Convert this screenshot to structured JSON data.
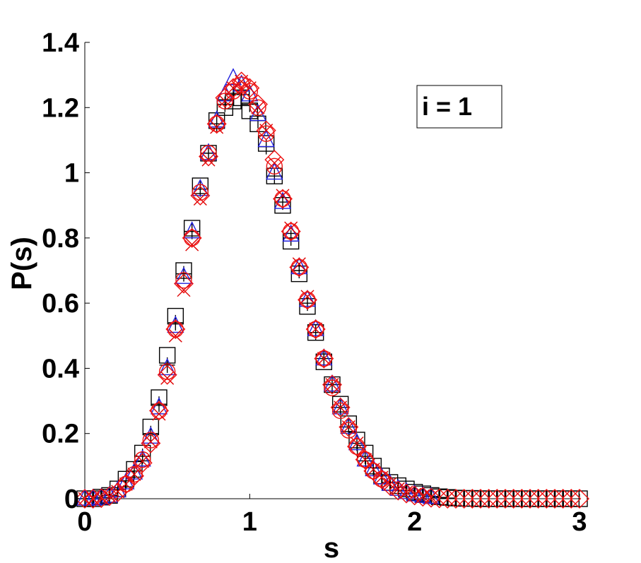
{
  "chart_data": {
    "type": "scatter",
    "title": "",
    "xlabel": "s",
    "ylabel": "P(s)",
    "xlim": [
      0,
      3
    ],
    "ylim": [
      0,
      1.4
    ],
    "xticks": [
      0,
      1,
      2,
      3
    ],
    "xtick_labels": [
      "0",
      "1",
      "2",
      "3"
    ],
    "yticks": [
      0,
      0.2,
      0.4,
      0.6,
      0.8,
      1.0,
      1.2,
      1.4
    ],
    "ytick_labels": [
      "0",
      "0.2",
      "0.4",
      "0.6",
      "0.8",
      "1",
      "1.2",
      "1.4"
    ],
    "grid": false,
    "annotation": "i = 1",
    "annotation_placement": "top-right",
    "series": [
      {
        "marker": "square",
        "color": "#000000",
        "x": [
          0.0,
          0.05,
          0.1,
          0.15,
          0.2,
          0.25,
          0.3,
          0.35,
          0.4,
          0.45,
          0.5,
          0.55,
          0.6,
          0.65,
          0.7,
          0.75,
          0.8,
          0.85,
          0.9,
          0.95,
          1.0,
          1.05,
          1.1,
          1.15,
          1.2,
          1.25,
          1.3,
          1.35,
          1.4,
          1.45,
          1.5,
          1.55,
          1.6,
          1.65,
          1.7,
          1.75,
          1.8,
          1.85,
          1.9,
          1.95,
          2.0,
          2.05,
          2.1,
          2.15,
          2.2,
          2.25,
          2.3,
          2.35,
          2.4,
          2.45,
          2.5,
          2.55,
          2.6,
          2.65,
          2.7,
          2.75,
          2.8,
          2.85,
          2.9,
          2.95,
          3.0
        ],
        "y": [
          0.0,
          0.0,
          0.005,
          0.01,
          0.03,
          0.06,
          0.09,
          0.14,
          0.22,
          0.31,
          0.44,
          0.56,
          0.7,
          0.83,
          0.96,
          1.06,
          1.16,
          1.2,
          1.22,
          1.23,
          1.19,
          1.15,
          1.09,
          0.99,
          0.9,
          0.79,
          0.69,
          0.59,
          0.51,
          0.42,
          0.35,
          0.29,
          0.23,
          0.18,
          0.14,
          0.1,
          0.07,
          0.05,
          0.04,
          0.03,
          0.02,
          0.015,
          0.01,
          0.006,
          0.004,
          0.002,
          0.001,
          0.001,
          0.0,
          0.0,
          0.0,
          0.0,
          0.0,
          0.0,
          0.0,
          0.0,
          0.0,
          0.0,
          0.0,
          0.0,
          0.0
        ]
      },
      {
        "marker": "plus",
        "color": "#000000",
        "x": [
          0.0,
          0.05,
          0.1,
          0.15,
          0.2,
          0.25,
          0.3,
          0.35,
          0.4,
          0.45,
          0.5,
          0.55,
          0.6,
          0.65,
          0.7,
          0.75,
          0.8,
          0.85,
          0.9,
          0.95,
          1.0,
          1.05,
          1.1,
          1.15,
          1.2,
          1.25,
          1.3,
          1.35,
          1.4,
          1.45,
          1.5,
          1.55,
          1.6,
          1.65,
          1.7,
          1.75,
          1.8,
          1.85,
          1.9,
          1.95,
          2.0,
          2.05,
          2.1,
          2.15,
          2.2
        ],
        "y": [
          0.0,
          0.0,
          0.004,
          0.01,
          0.028,
          0.055,
          0.085,
          0.13,
          0.2,
          0.29,
          0.41,
          0.54,
          0.69,
          0.82,
          0.95,
          1.06,
          1.15,
          1.21,
          1.24,
          1.24,
          1.21,
          1.16,
          1.08,
          0.99,
          0.91,
          0.8,
          0.7,
          0.6,
          0.51,
          0.43,
          0.35,
          0.28,
          0.22,
          0.17,
          0.13,
          0.095,
          0.07,
          0.05,
          0.035,
          0.025,
          0.017,
          0.011,
          0.007,
          0.004,
          0.002
        ]
      },
      {
        "marker": "triangle",
        "color": "#2020dd",
        "x": [
          0.0,
          0.05,
          0.1,
          0.15,
          0.2,
          0.25,
          0.3,
          0.35,
          0.4,
          0.45,
          0.5,
          0.55,
          0.6,
          0.65,
          0.7,
          0.75,
          0.8,
          0.85,
          0.9,
          0.95,
          1.0,
          1.05,
          1.1,
          1.15,
          1.2,
          1.25,
          1.3,
          1.35,
          1.4,
          1.45,
          1.5,
          1.55,
          1.6,
          1.65,
          1.7,
          1.75,
          1.8,
          1.85,
          1.9,
          1.95,
          2.0,
          2.05,
          2.1
        ],
        "y": [
          0.0,
          0.0,
          0.003,
          0.009,
          0.025,
          0.05,
          0.08,
          0.12,
          0.19,
          0.28,
          0.4,
          0.53,
          0.68,
          0.82,
          0.95,
          1.06,
          1.16,
          1.24,
          1.29,
          1.27,
          1.24,
          1.18,
          1.1,
          1.0,
          0.91,
          0.81,
          0.71,
          0.61,
          0.52,
          0.43,
          0.35,
          0.28,
          0.22,
          0.17,
          0.12,
          0.09,
          0.065,
          0.045,
          0.03,
          0.02,
          0.013,
          0.008,
          0.005
        ]
      },
      {
        "marker": "x",
        "color": "#dd0000",
        "x": [
          0.0,
          0.05,
          0.1,
          0.15,
          0.2,
          0.25,
          0.3,
          0.35,
          0.4,
          0.45,
          0.5,
          0.55,
          0.6,
          0.65,
          0.7,
          0.75,
          0.8,
          0.85,
          0.9,
          0.95,
          1.0,
          1.05,
          1.1,
          1.15,
          1.2,
          1.25,
          1.3,
          1.35,
          1.4,
          1.45,
          1.5,
          1.55,
          1.6,
          1.65,
          1.7,
          1.75,
          1.8,
          1.85,
          1.9,
          1.95,
          2.0,
          2.05,
          2.1
        ],
        "y": [
          0.0,
          0.0,
          0.003,
          0.008,
          0.022,
          0.045,
          0.075,
          0.115,
          0.175,
          0.26,
          0.37,
          0.5,
          0.64,
          0.78,
          0.92,
          1.04,
          1.14,
          1.22,
          1.26,
          1.28,
          1.26,
          1.2,
          1.13,
          1.03,
          0.93,
          0.83,
          0.72,
          0.62,
          0.52,
          0.43,
          0.35,
          0.28,
          0.22,
          0.17,
          0.12,
          0.09,
          0.065,
          0.045,
          0.03,
          0.02,
          0.013,
          0.008,
          0.005
        ]
      },
      {
        "marker": "diamond",
        "color": "#ee1111",
        "x": [
          0.0,
          0.05,
          0.1,
          0.15,
          0.2,
          0.25,
          0.3,
          0.35,
          0.4,
          0.45,
          0.5,
          0.55,
          0.6,
          0.65,
          0.7,
          0.75,
          0.8,
          0.85,
          0.9,
          0.95,
          1.0,
          1.05,
          1.1,
          1.15,
          1.2,
          1.25,
          1.3,
          1.35,
          1.4,
          1.45,
          1.5,
          1.55,
          1.6,
          1.65,
          1.7,
          1.75,
          1.8,
          1.85,
          1.9,
          1.95,
          2.0,
          2.05,
          2.1,
          2.15,
          2.2,
          2.25,
          2.3,
          2.35,
          2.4,
          2.45,
          2.5,
          2.55,
          2.6,
          2.65,
          2.7,
          2.75,
          2.8,
          2.85,
          2.9,
          2.95,
          3.0
        ],
        "y": [
          0.0,
          0.0,
          0.002,
          0.008,
          0.02,
          0.045,
          0.07,
          0.11,
          0.17,
          0.27,
          0.38,
          0.52,
          0.66,
          0.8,
          0.93,
          1.05,
          1.15,
          1.23,
          1.26,
          1.28,
          1.26,
          1.21,
          1.13,
          1.04,
          0.92,
          0.82,
          0.71,
          0.61,
          0.52,
          0.43,
          0.35,
          0.28,
          0.22,
          0.16,
          0.12,
          0.085,
          0.06,
          0.04,
          0.025,
          0.016,
          0.01,
          0.006,
          0.003,
          0.001,
          0.0,
          0.0,
          0.0,
          0.0,
          0.0,
          0.0,
          0.0,
          0.0,
          0.0,
          0.0,
          0.0,
          0.0,
          0.0,
          0.0,
          0.0,
          0.0,
          0.0
        ]
      },
      {
        "marker": "circle",
        "color": "#ee1111",
        "x": [
          0.25,
          0.3,
          0.35,
          0.4,
          0.45,
          0.5,
          0.55,
          0.6,
          0.65,
          0.7,
          0.75,
          0.8,
          0.85,
          0.9,
          0.95,
          1.0,
          1.05,
          1.1,
          1.15,
          1.2,
          1.25,
          1.3,
          1.35,
          1.4,
          1.45,
          1.5,
          1.55,
          1.6,
          1.65,
          1.7,
          1.75,
          1.8
        ],
        "y": [
          0.045,
          0.075,
          0.12,
          0.18,
          0.27,
          0.39,
          0.52,
          0.67,
          0.8,
          0.94,
          1.06,
          1.15,
          1.22,
          1.25,
          1.27,
          1.25,
          1.2,
          1.12,
          1.02,
          0.92,
          0.82,
          0.71,
          0.61,
          0.52,
          0.43,
          0.34,
          0.27,
          0.21,
          0.16,
          0.12,
          0.085,
          0.06
        ]
      }
    ]
  }
}
